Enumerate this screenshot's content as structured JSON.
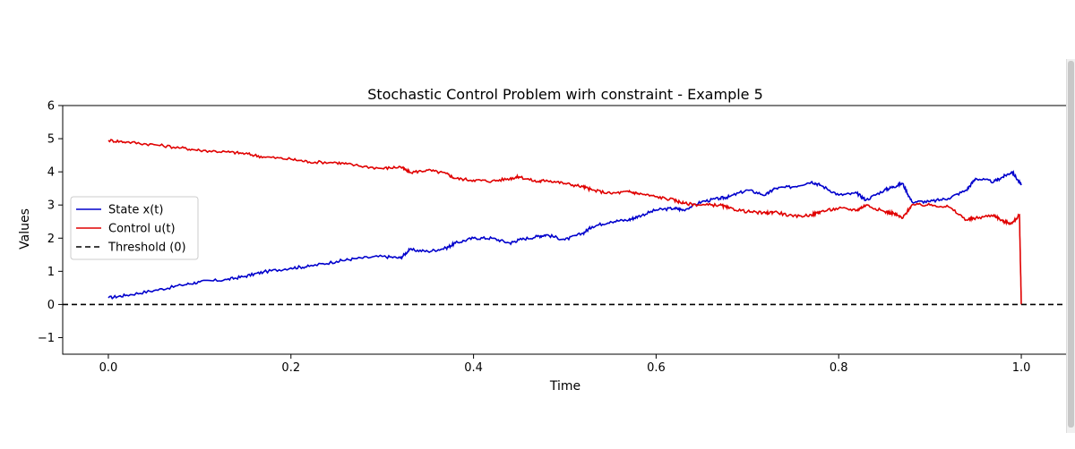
{
  "chart_data": {
    "type": "line",
    "title": "Stochastic Control Problem wirh constraint - Example 5",
    "xlabel": "Time",
    "ylabel": "Values",
    "xlim": [
      -0.05,
      1.05
    ],
    "ylim": [
      -1.5,
      6
    ],
    "xticks": [
      0.0,
      0.2,
      0.4,
      0.6,
      0.8,
      1.0
    ],
    "xtick_labels": [
      "0.0",
      "0.2",
      "0.4",
      "0.6",
      "0.8",
      "1.0"
    ],
    "yticks": [
      -1,
      0,
      1,
      2,
      3,
      4,
      5,
      6
    ],
    "ytick_labels": [
      "−1",
      "0",
      "1",
      "2",
      "3",
      "4",
      "5",
      "6"
    ],
    "grid": false,
    "legend_position": "center-left",
    "series": [
      {
        "name": "State x(t)",
        "color": "#0000cc",
        "style": "solid",
        "x": [
          0.0,
          0.02,
          0.05,
          0.08,
          0.1,
          0.13,
          0.15,
          0.17,
          0.2,
          0.22,
          0.25,
          0.27,
          0.3,
          0.32,
          0.33,
          0.35,
          0.37,
          0.38,
          0.4,
          0.42,
          0.44,
          0.45,
          0.47,
          0.48,
          0.5,
          0.52,
          0.53,
          0.55,
          0.57,
          0.58,
          0.6,
          0.62,
          0.63,
          0.65,
          0.67,
          0.68,
          0.7,
          0.72,
          0.73,
          0.75,
          0.77,
          0.78,
          0.8,
          0.82,
          0.83,
          0.85,
          0.86,
          0.87,
          0.88,
          0.9,
          0.92,
          0.94,
          0.95,
          0.97,
          0.98,
          0.99,
          1.0
        ],
        "y": [
          0.2,
          0.28,
          0.42,
          0.58,
          0.68,
          0.75,
          0.85,
          0.98,
          1.1,
          1.15,
          1.3,
          1.38,
          1.45,
          1.4,
          1.65,
          1.6,
          1.7,
          1.85,
          2.0,
          2.0,
          1.85,
          1.95,
          2.05,
          2.1,
          1.95,
          2.15,
          2.35,
          2.5,
          2.55,
          2.65,
          2.85,
          2.9,
          2.85,
          3.1,
          3.2,
          3.25,
          3.45,
          3.3,
          3.5,
          3.55,
          3.7,
          3.6,
          3.3,
          3.35,
          3.15,
          3.45,
          3.55,
          3.65,
          3.1,
          3.1,
          3.2,
          3.45,
          3.8,
          3.7,
          3.85,
          4.0,
          3.6
        ]
      },
      {
        "name": "Control u(t)",
        "color": "#e00000",
        "style": "solid",
        "x": [
          0.0,
          0.02,
          0.05,
          0.08,
          0.1,
          0.13,
          0.15,
          0.17,
          0.2,
          0.22,
          0.25,
          0.27,
          0.3,
          0.32,
          0.33,
          0.35,
          0.37,
          0.38,
          0.4,
          0.42,
          0.44,
          0.45,
          0.47,
          0.48,
          0.5,
          0.52,
          0.53,
          0.55,
          0.57,
          0.58,
          0.6,
          0.62,
          0.63,
          0.65,
          0.67,
          0.68,
          0.7,
          0.72,
          0.73,
          0.75,
          0.77,
          0.78,
          0.8,
          0.82,
          0.83,
          0.85,
          0.86,
          0.87,
          0.88,
          0.9,
          0.92,
          0.94,
          0.95,
          0.97,
          0.98,
          0.99,
          0.998,
          1.0
        ],
        "y": [
          4.95,
          4.9,
          4.82,
          4.72,
          4.65,
          4.6,
          4.55,
          4.45,
          4.38,
          4.3,
          4.28,
          4.2,
          4.1,
          4.15,
          3.98,
          4.05,
          3.95,
          3.8,
          3.75,
          3.72,
          3.8,
          3.85,
          3.7,
          3.75,
          3.65,
          3.55,
          3.45,
          3.35,
          3.4,
          3.35,
          3.25,
          3.15,
          3.05,
          3.0,
          3.0,
          2.9,
          2.8,
          2.75,
          2.8,
          2.65,
          2.7,
          2.8,
          2.9,
          2.85,
          3.0,
          2.8,
          2.75,
          2.6,
          3.0,
          3.0,
          2.95,
          2.55,
          2.6,
          2.7,
          2.5,
          2.45,
          2.7,
          0.0
        ]
      },
      {
        "name": "Threshold (0)",
        "color": "#000000",
        "style": "dashed",
        "x": [
          -0.05,
          1.05
        ],
        "y": [
          0,
          0
        ]
      }
    ]
  }
}
